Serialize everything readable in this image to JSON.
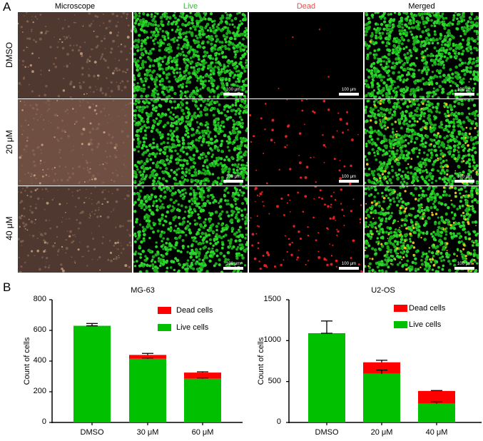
{
  "panel_a": {
    "label": "A",
    "columns": [
      {
        "label": "Microscope",
        "color": "#000000"
      },
      {
        "label": "Live",
        "color": "#3cb83c"
      },
      {
        "label": "Dead",
        "color": "#e05050"
      },
      {
        "label": "Merged",
        "color": "#000000"
      }
    ],
    "rows": [
      {
        "label": "DMSO"
      },
      {
        "label": "20 μM"
      },
      {
        "label": "40 μM"
      }
    ],
    "scale_bar": "100 μm"
  },
  "panel_b": {
    "label": "B",
    "legend": {
      "dead": {
        "label": "Dead cells",
        "color": "#ff0000"
      },
      "live": {
        "label": "Live cells",
        "color": "#00c000"
      }
    }
  },
  "chart_data": [
    {
      "type": "bar",
      "stacked": true,
      "title": "MG-63",
      "xlabel": "",
      "ylabel": "Count of cells",
      "ylim": [
        0,
        800
      ],
      "yticks": [
        0,
        200,
        400,
        600,
        800
      ],
      "categories": [
        "DMSO",
        "30 μM",
        "60 μM"
      ],
      "series": [
        {
          "name": "Live cells",
          "color": "#00c000",
          "values": [
            630,
            415,
            285
          ],
          "error_lower": [
            630,
            420,
            290
          ]
        },
        {
          "name": "Dead cells",
          "color": "#ff0000",
          "values": [
            0,
            25,
            40
          ],
          "error_upper_total": [
            645,
            450,
            330
          ]
        }
      ],
      "legend_position": "upper right",
      "grid": false
    },
    {
      "type": "bar",
      "stacked": true,
      "title": "U2-OS",
      "xlabel": "",
      "ylabel": "Count of cells",
      "ylim": [
        0,
        1500
      ],
      "yticks": [
        0,
        500,
        1000,
        1500
      ],
      "categories": [
        "DMSO",
        "20 μM",
        "40 μM"
      ],
      "series": [
        {
          "name": "Live cells",
          "color": "#00c000",
          "values": [
            1085,
            595,
            230
          ],
          "error_lower": [
            1090,
            640,
            250
          ]
        },
        {
          "name": "Dead cells",
          "color": "#ff0000",
          "values": [
            5,
            140,
            155
          ],
          "error_upper_total": [
            1240,
            760,
            390
          ]
        }
      ],
      "legend_position": "upper right",
      "grid": false
    }
  ]
}
